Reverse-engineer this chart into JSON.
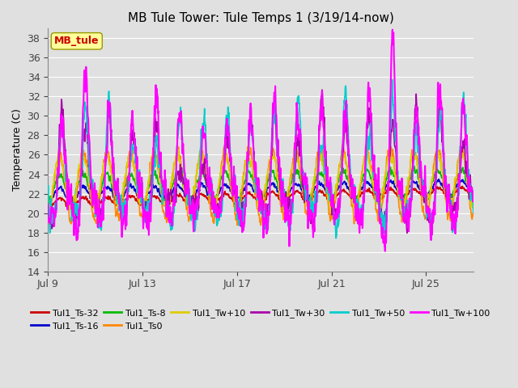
{
  "title": "MB Tule Tower: Tule Temps 1 (3/19/14-now)",
  "ylabel": "Temperature (C)",
  "ylim": [
    14,
    39
  ],
  "yticks": [
    14,
    16,
    18,
    20,
    22,
    24,
    26,
    28,
    30,
    32,
    34,
    36,
    38
  ],
  "n_days": 18,
  "xtick_labels": [
    "Jul 9",
    "Jul 13",
    "Jul 17",
    "Jul 21",
    "Jul 25"
  ],
  "xtick_positions": [
    0,
    4,
    8,
    12,
    16
  ],
  "background_color": "#e0e0e0",
  "plot_bg_color": "#e0e0e0",
  "grid_color": "#ffffff",
  "legend_box_facecolor": "#ffff99",
  "legend_box_edgecolor": "#999900",
  "series": [
    {
      "label": "Tul1_Ts-32",
      "color": "#cc0000",
      "lw": 1.2,
      "base": 21.0,
      "amp": 0.5,
      "noise": 0.15,
      "trend": 1.2,
      "sharp": false
    },
    {
      "label": "Tul1_Ts-16",
      "color": "#0000cc",
      "lw": 1.2,
      "base": 21.8,
      "amp": 0.8,
      "noise": 0.2,
      "trend": 0.8,
      "sharp": false
    },
    {
      "label": "Tul1_Ts-8",
      "color": "#00bb00",
      "lw": 1.2,
      "base": 22.5,
      "amp": 1.5,
      "noise": 0.3,
      "trend": 0.5,
      "sharp": false
    },
    {
      "label": "Tul1_Ts0",
      "color": "#ff8800",
      "lw": 1.2,
      "base": 22.8,
      "amp": 3.5,
      "noise": 0.5,
      "trend": 0.3,
      "sharp": false
    },
    {
      "label": "Tul1_Tw+10",
      "color": "#ddcc00",
      "lw": 1.2,
      "base": 23.2,
      "amp": 2.5,
      "noise": 0.5,
      "trend": 0.2,
      "sharp": false
    },
    {
      "label": "Tul1_Tw+30",
      "color": "#aa00aa",
      "lw": 1.2,
      "base": 22.0,
      "amp": 7.0,
      "noise": 1.0,
      "trend": 0.0,
      "sharp": true
    },
    {
      "label": "Tul1_Tw+50",
      "color": "#00cccc",
      "lw": 1.2,
      "base": 22.0,
      "amp": 8.0,
      "noise": 1.2,
      "trend": 0.0,
      "sharp": true
    },
    {
      "label": "Tul1_Tw+100",
      "color": "#ff00ff",
      "lw": 1.5,
      "base": 22.0,
      "amp": 10.0,
      "noise": 1.5,
      "trend": 0.0,
      "sharp": true
    }
  ],
  "legend_label": "MB_tule",
  "legend_label_color": "#cc0000"
}
